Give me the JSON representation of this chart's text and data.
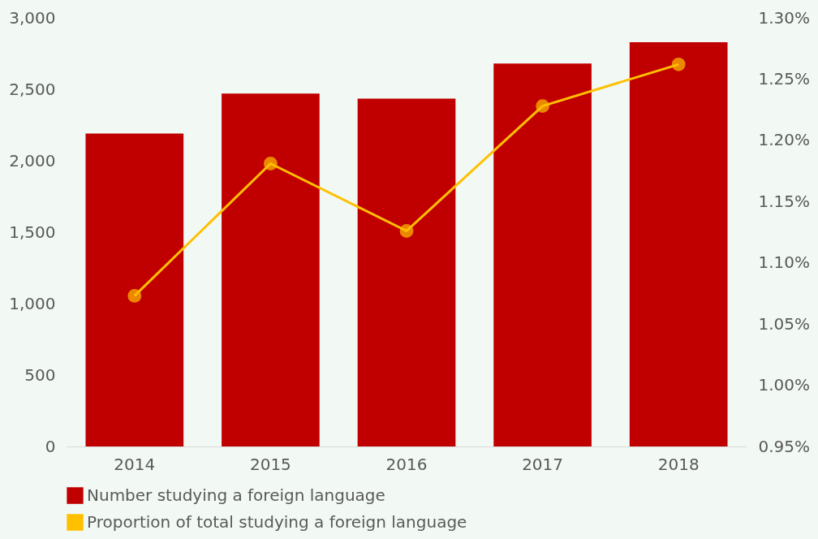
{
  "chart_data": {
    "type": "bar",
    "categories": [
      "2014",
      "2015",
      "2016",
      "2017",
      "2018"
    ],
    "series": [
      {
        "name": "Number studying a foreign language",
        "color": "#c00000",
        "values": [
          2190,
          2470,
          2435,
          2680,
          2830
        ]
      },
      {
        "name": "Proportion of total studying a foreign language",
        "type": "line",
        "axis": "y2",
        "color": "#ffc000",
        "values": [
          1.073,
          1.181,
          1.126,
          1.228,
          1.262
        ]
      }
    ],
    "ylim": [
      0,
      3000
    ],
    "yticks": [
      0,
      500,
      {
        "value": 1000,
        "label": "1,000"
      },
      {
        "value": 1500,
        "label": "1,500"
      },
      {
        "value": 2000,
        "label": "2,000"
      },
      {
        "value": 2500,
        "label": "2,500"
      },
      {
        "value": 3000,
        "label": "3,000"
      }
    ],
    "y2lim": [
      0.95,
      1.3
    ],
    "y2ticks": [
      {
        "value": 0.95,
        "label": "0.95%"
      },
      {
        "value": 1.0,
        "label": "1.00%"
      },
      {
        "value": 1.05,
        "label": "1.05%"
      },
      {
        "value": 1.1,
        "label": "1.10%"
      },
      {
        "value": 1.15,
        "label": "1.15%"
      },
      {
        "value": 1.2,
        "label": "1.20%"
      },
      {
        "value": 1.25,
        "label": "1.25%"
      },
      {
        "value": 1.3,
        "label": "1.30%"
      }
    ],
    "grid": false,
    "legend": "bottom",
    "marker": "circle",
    "line_style": "solid"
  }
}
